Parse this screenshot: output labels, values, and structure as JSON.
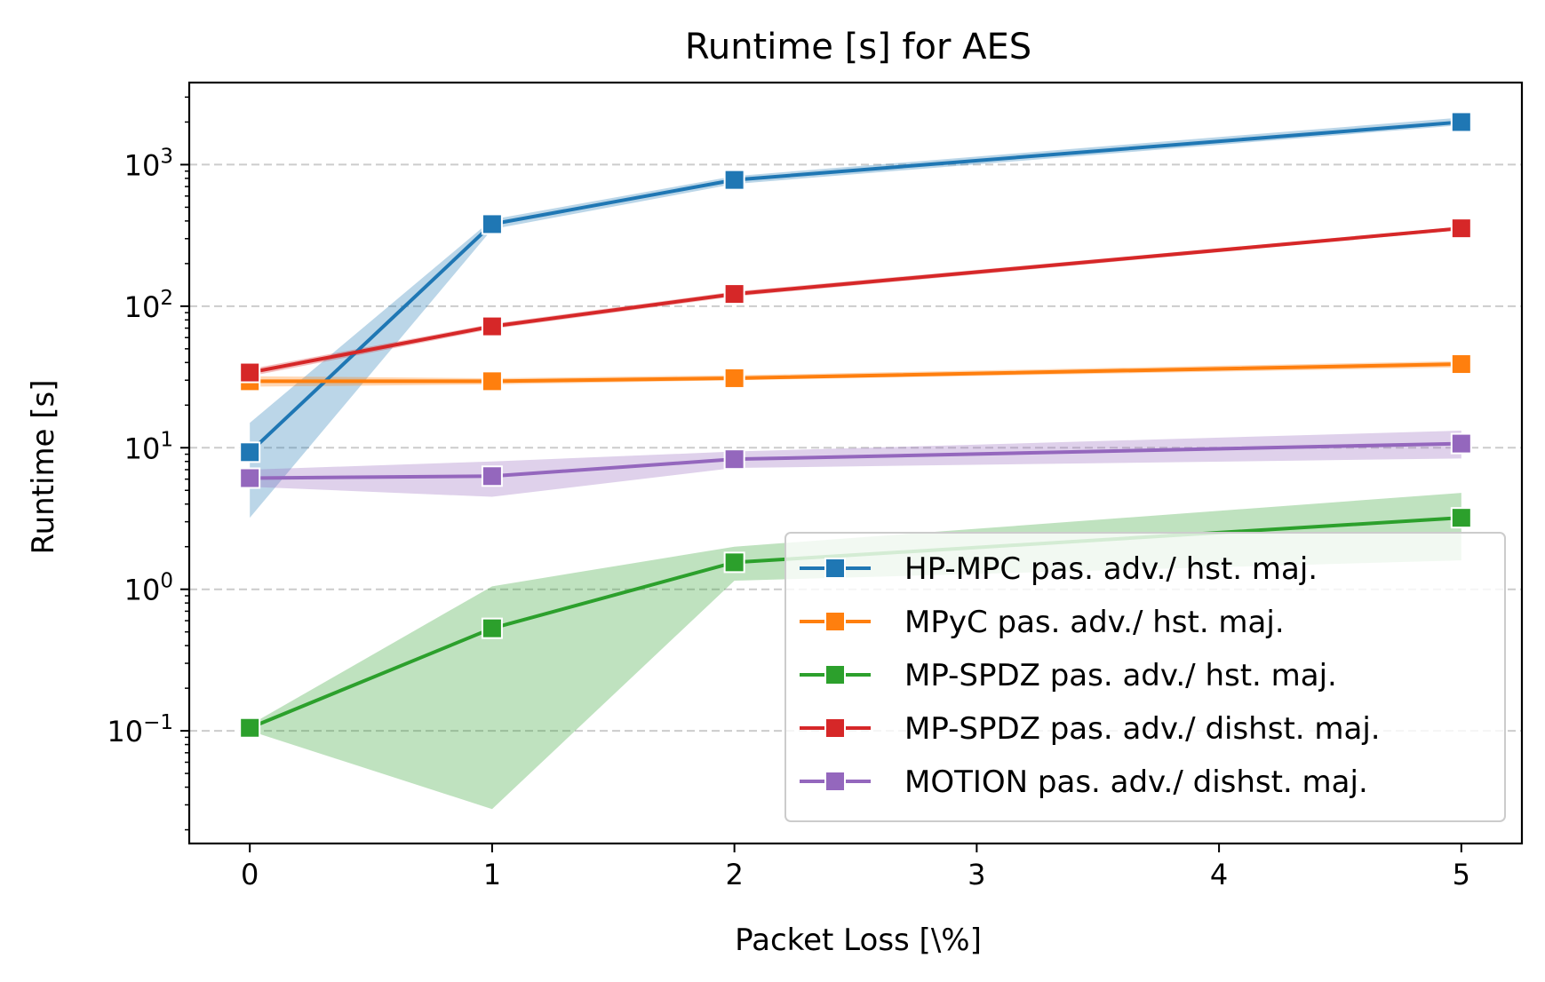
{
  "chart_data": {
    "type": "line",
    "title": "Runtime [s] for AES",
    "xlabel": "Packet Loss [\\%]",
    "ylabel": "Runtime [s]",
    "yscale": "log",
    "ylim": [
      0.016,
      3800
    ],
    "xlim": [
      -0.25,
      5.25
    ],
    "x_categories": [
      "0",
      "1",
      "2",
      "5"
    ],
    "x_ticks": [
      "0",
      "1",
      "2",
      "3",
      "4",
      "5"
    ],
    "y_ticks": [
      {
        "value": 1000,
        "base": "10",
        "exp": "3"
      },
      {
        "value": 100,
        "base": "10",
        "exp": "2"
      },
      {
        "value": 10,
        "base": "10",
        "exp": "1"
      },
      {
        "value": 1,
        "base": "10",
        "exp": "0"
      },
      {
        "value": 0.1,
        "base": "10",
        "exp": "−1"
      }
    ],
    "grid": "horizontal dashed",
    "legend_position": "lower-right",
    "series": [
      {
        "name": "HP-MPC pas. adv./ hst. maj.",
        "color": "#1f77b4",
        "x": [
          0,
          1,
          2,
          5
        ],
        "values": [
          9.3,
          380,
          780,
          2000
        ],
        "ci_low": [
          3.2,
          350,
          730,
          1900
        ],
        "ci_high": [
          15,
          410,
          830,
          2150
        ]
      },
      {
        "name": "MPyC pas. adv./ hst. maj.",
        "color": "#ff7f0e",
        "x": [
          0,
          1,
          2,
          5
        ],
        "values": [
          29.5,
          29.5,
          31,
          39
        ],
        "ci_low": [
          27,
          28,
          30,
          37
        ],
        "ci_high": [
          32,
          31,
          32.5,
          41
        ]
      },
      {
        "name": "MP-SPDZ pas. adv./ hst. maj.",
        "color": "#2ca02c",
        "x": [
          0,
          1,
          2,
          5
        ],
        "values": [
          0.105,
          0.53,
          1.55,
          3.2
        ],
        "ci_low": [
          0.1,
          0.028,
          1.15,
          1.6
        ],
        "ci_high": [
          0.11,
          1.05,
          2.0,
          4.8
        ]
      },
      {
        "name": "MP-SPDZ pas. adv./ dishst. maj.",
        "color": "#d62728",
        "x": [
          0,
          1,
          2,
          5
        ],
        "values": [
          34,
          72,
          122,
          355
        ],
        "ci_low": [
          32,
          69,
          117,
          345
        ],
        "ci_high": [
          36,
          75,
          127,
          365
        ]
      },
      {
        "name": "MOTION pas. adv./ dishst. maj.",
        "color": "#9467bd",
        "x": [
          0,
          1,
          2,
          5
        ],
        "values": [
          6.1,
          6.3,
          8.3,
          10.7
        ],
        "ci_low": [
          5.3,
          4.5,
          7.2,
          8.4
        ],
        "ci_high": [
          7.0,
          8.0,
          9.4,
          13.2
        ]
      }
    ]
  }
}
